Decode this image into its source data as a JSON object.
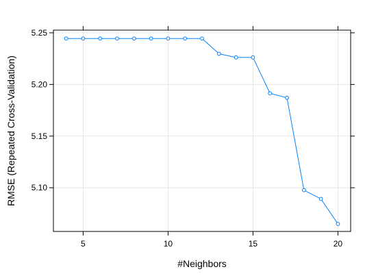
{
  "chart_data": {
    "type": "line",
    "title": "",
    "xlabel": "#Neighbors",
    "ylabel": "RMSE (Repeated Cross-Validation)",
    "xlim": [
      3.25,
      20.75
    ],
    "ylim": [
      5.0577,
      5.2526
    ],
    "xticks": [
      5,
      10,
      15,
      20
    ],
    "yticks": [
      5.1,
      5.15,
      5.2,
      5.25
    ],
    "ytick_labels": [
      "5.10",
      "5.15",
      "5.20",
      "5.25"
    ],
    "grid": true,
    "series_color": "#0080ff",
    "series": [
      {
        "x": [
          4,
          5,
          6,
          7,
          8,
          9,
          10,
          11,
          12,
          13,
          14,
          15,
          16,
          17,
          18,
          19,
          20
        ],
        "y": [
          5.2445,
          5.2445,
          5.2445,
          5.2445,
          5.2445,
          5.2445,
          5.2445,
          5.2445,
          5.2445,
          5.2297,
          5.2262,
          5.2262,
          5.1914,
          5.1871,
          5.0977,
          5.0892,
          5.065
        ]
      }
    ]
  }
}
